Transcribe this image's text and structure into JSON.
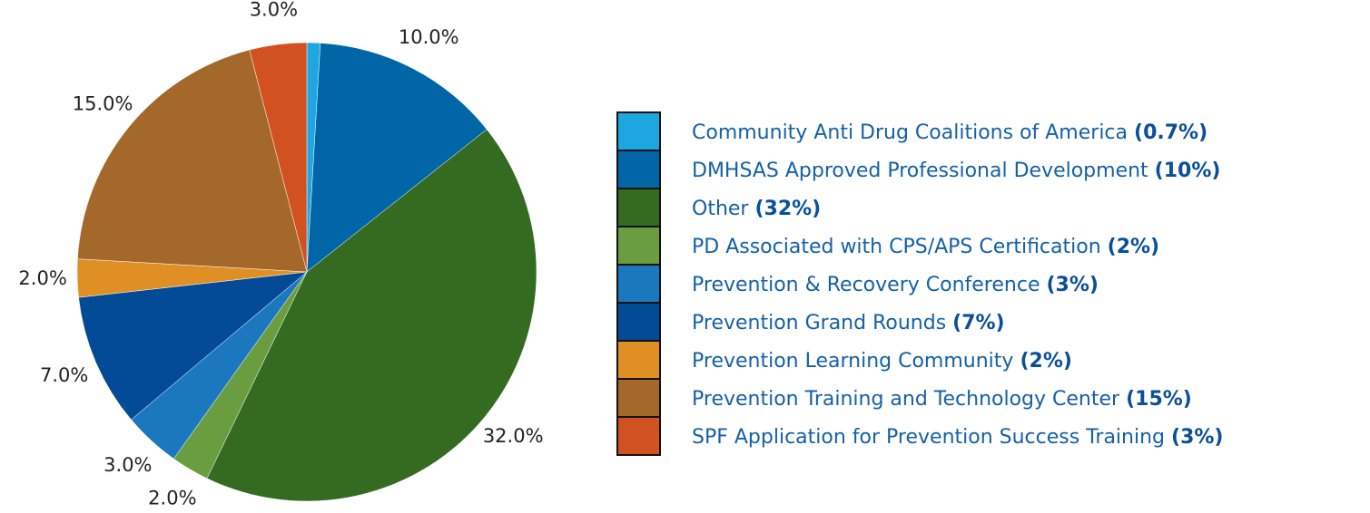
{
  "chart_data": {
    "type": "pie",
    "categories": [
      "Community Anti Drug Coalitions of America",
      "DMHSAS Approved Professional Development",
      "Other",
      "PD Associated with CPS/APS Certification",
      "Prevention & Recovery Conference",
      "Prevention Grand Rounds",
      "Prevention Learning Community",
      "Prevention Training and Technology Center",
      "SPF Application for Prevention Success Training"
    ],
    "values": [
      0.7,
      10,
      32,
      2,
      3,
      7,
      2,
      15,
      3
    ],
    "value_labels": [
      null,
      "10.0%",
      "32.0%",
      "2.0%",
      "3.0%",
      "7.0%",
      "2.0%",
      "15.0%",
      "3.0%"
    ],
    "legend_labels": [
      "(0.7%)",
      "(10%)",
      "(32%)",
      "(2%)",
      "(3%)",
      "(7%)",
      "(2%)",
      "(15%)",
      "(3%)"
    ],
    "colors": [
      "#1ea6e0",
      "#0066a8",
      "#356a21",
      "#6a9c40",
      "#1b78be",
      "#034b96",
      "#e08f25",
      "#a4692a",
      "#d25121"
    ]
  }
}
